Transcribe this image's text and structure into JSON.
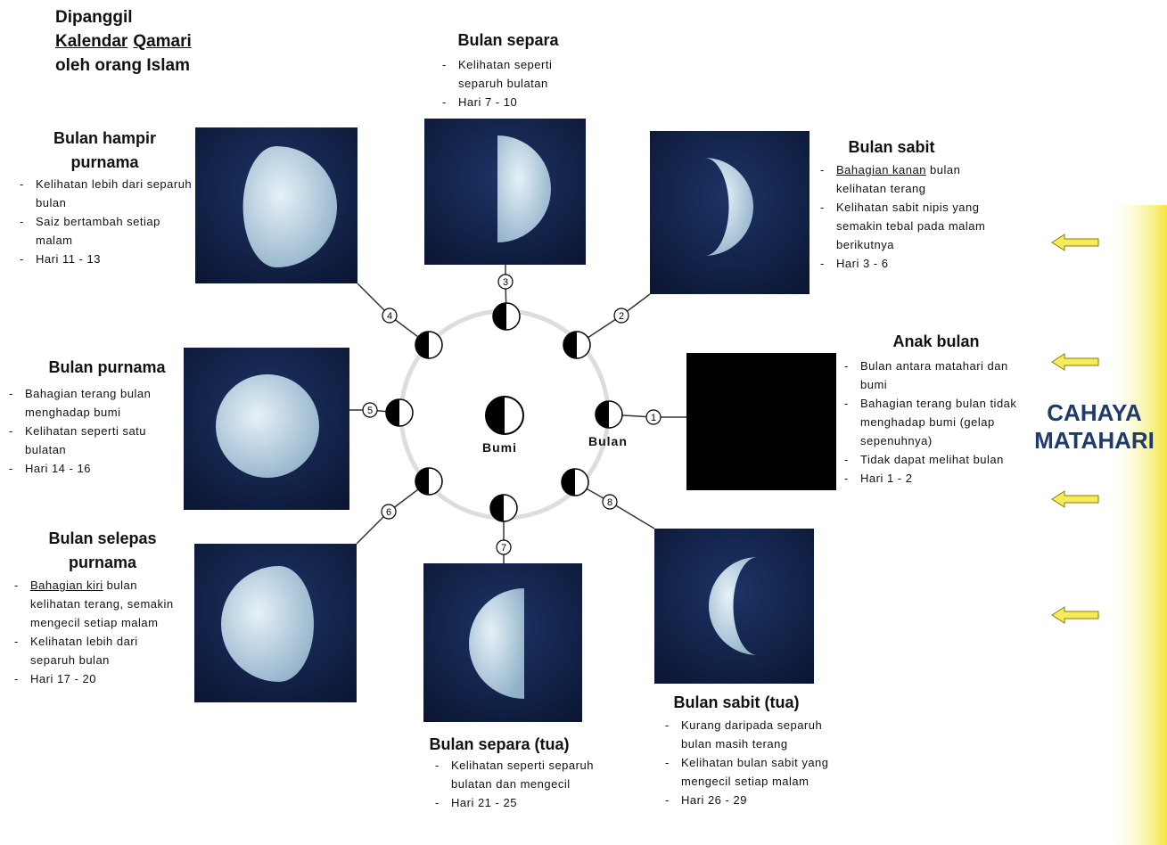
{
  "header": {
    "line1": "Dipanggil",
    "line2": [
      "Kalendar",
      "Qamari"
    ],
    "line3": "oleh orang Islam"
  },
  "phases": [
    {
      "number": "1",
      "title": "Anak bulan",
      "bullets": [
        "Bulan antara matahari dan bumi",
        "Bahagian terang bulan tidak menghadap bumi (gelap sepenuhnya)",
        "Tidak dapat melihat bulan",
        "Hari 1 - 2"
      ]
    },
    {
      "number": "2",
      "title": "Bulan sabit",
      "bullets": [
        {
          "underlined": "Bahagian kanan",
          "rest": "bulan kelihatan terang"
        },
        "Kelihatan sabit nipis yang semakin tebal pada malam berikutnya",
        "Hari 3 - 6"
      ]
    },
    {
      "number": "3",
      "title": "Bulan separa",
      "bullets": [
        "Kelihatan seperti separuh bulatan",
        "Hari 7 - 10"
      ]
    },
    {
      "number": "4",
      "title": "Bulan hampir purnama",
      "bullets": [
        "Kelihatan lebih dari separuh bulan",
        "Saiz bertambah setiap malam",
        "Hari 11 - 13"
      ]
    },
    {
      "number": "5",
      "title": "Bulan purnama",
      "bullets": [
        "Bahagian terang bulan menghadap bumi",
        "Kelihatan seperti satu bulatan",
        "Hari 14 - 16"
      ]
    },
    {
      "number": "6",
      "title": "Bulan selepas purnama",
      "bullets": [
        {
          "underlined": "Bahagian kiri",
          "rest": "bulan kelihatan terang, semakin mengecil setiap malam"
        },
        "Kelihatan lebih dari separuh bulan",
        "Hari 17 - 20"
      ]
    },
    {
      "number": "7",
      "title": "Bulan separa (tua)",
      "bullets": [
        "Kelihatan seperti separuh bulatan dan mengecil",
        "Hari 21 - 25"
      ]
    },
    {
      "number": "8",
      "title": "Bulan sabit (tua)",
      "bullets": [
        "Kurang daripada separuh bulan masih terang",
        "Kelihatan bulan sabit yang mengecil setiap malam",
        "Hari 26 - 29"
      ]
    }
  ],
  "center": {
    "earth": "Bumi",
    "moon": "Bulan"
  },
  "sun": {
    "line1": "CAHAYA",
    "line2": "MATAHARI"
  }
}
